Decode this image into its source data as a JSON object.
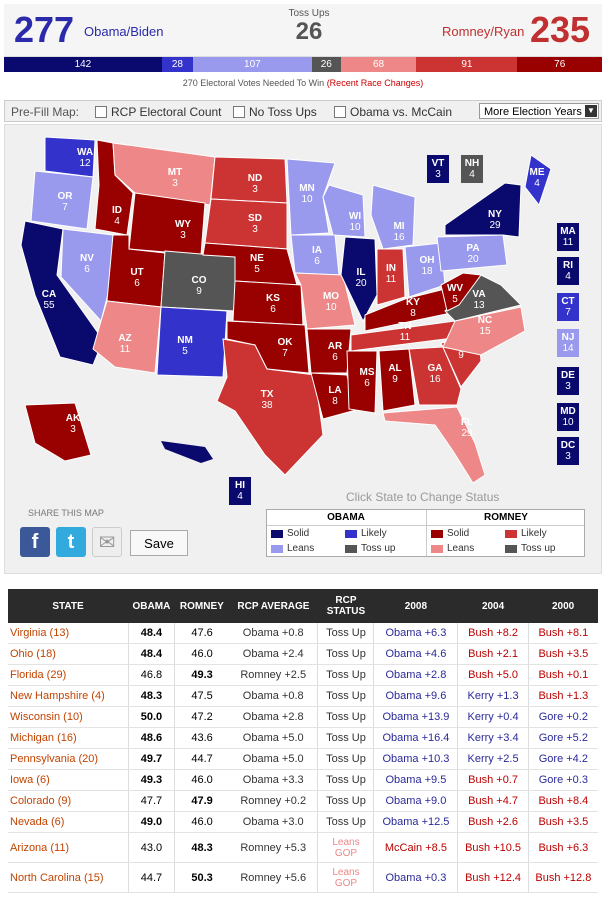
{
  "header": {
    "obama_votes": "277",
    "obama_label": "Obama/Biden",
    "toss_label": "Toss Ups",
    "toss_votes": "26",
    "romney_label": "Romney/Ryan",
    "romney_votes": "235"
  },
  "bar": [
    {
      "value": "142",
      "color": "#0a0a6e",
      "width": 142
    },
    {
      "value": "28",
      "color": "#3333cc",
      "width": 28
    },
    {
      "value": "107",
      "color": "#9999ee",
      "width": 107
    },
    {
      "value": "26",
      "color": "#555555",
      "width": 26
    },
    {
      "value": "68",
      "color": "#ee8888",
      "width": 68
    },
    {
      "value": "91",
      "color": "#cc3333",
      "width": 91
    },
    {
      "value": "76",
      "color": "#990000",
      "width": 76
    }
  ],
  "note": {
    "text": "270 Electoral Votes Needed To Win",
    "link": "(Recent Race Changes)"
  },
  "prefill": {
    "label": "Pre-Fill Map:",
    "options": [
      "RCP Electoral Count",
      "No Toss Ups",
      "Obama vs. McCain"
    ],
    "select": "More Election Years",
    "arrow": "▼"
  },
  "colors": {
    "solid_o": "#0a0a6e",
    "likely_o": "#3333cc",
    "leans_o": "#9999ee",
    "toss": "#555555",
    "leans_r": "#ee8888",
    "likely_r": "#cc3333",
    "solid_r": "#990000"
  },
  "states": [
    {
      "a": "WA",
      "v": "12",
      "c": "likely_o"
    },
    {
      "a": "OR",
      "v": "7",
      "c": "leans_o"
    },
    {
      "a": "CA",
      "v": "55",
      "c": "solid_o"
    },
    {
      "a": "ID",
      "v": "4",
      "c": "solid_r"
    },
    {
      "a": "NV",
      "v": "6",
      "c": "leans_o"
    },
    {
      "a": "MT",
      "v": "3",
      "c": "leans_r"
    },
    {
      "a": "WY",
      "v": "3",
      "c": "solid_r"
    },
    {
      "a": "UT",
      "v": "6",
      "c": "solid_r"
    },
    {
      "a": "AZ",
      "v": "11",
      "c": "leans_r"
    },
    {
      "a": "CO",
      "v": "9",
      "c": "toss"
    },
    {
      "a": "NM",
      "v": "5",
      "c": "likely_o"
    },
    {
      "a": "ND",
      "v": "3",
      "c": "likely_r"
    },
    {
      "a": "SD",
      "v": "3",
      "c": "likely_r"
    },
    {
      "a": "NE",
      "v": "5",
      "c": "solid_r"
    },
    {
      "a": "KS",
      "v": "6",
      "c": "solid_r"
    },
    {
      "a": "OK",
      "v": "7",
      "c": "solid_r"
    },
    {
      "a": "TX",
      "v": "38",
      "c": "likely_r"
    },
    {
      "a": "MN",
      "v": "10",
      "c": "leans_o"
    },
    {
      "a": "IA",
      "v": "6",
      "c": "leans_o"
    },
    {
      "a": "MO",
      "v": "10",
      "c": "leans_r"
    },
    {
      "a": "AR",
      "v": "6",
      "c": "solid_r"
    },
    {
      "a": "LA",
      "v": "8",
      "c": "solid_r"
    },
    {
      "a": "WI",
      "v": "10",
      "c": "leans_o"
    },
    {
      "a": "IL",
      "v": "20",
      "c": "solid_o"
    },
    {
      "a": "MI",
      "v": "16",
      "c": "leans_o"
    },
    {
      "a": "IN",
      "v": "11",
      "c": "likely_r"
    },
    {
      "a": "OH",
      "v": "18",
      "c": "leans_o"
    },
    {
      "a": "KY",
      "v": "8",
      "c": "solid_r"
    },
    {
      "a": "TN",
      "v": "11",
      "c": "likely_r"
    },
    {
      "a": "MS",
      "v": "6",
      "c": "solid_r"
    },
    {
      "a": "AL",
      "v": "9",
      "c": "solid_r"
    },
    {
      "a": "GA",
      "v": "16",
      "c": "likely_r"
    },
    {
      "a": "FL",
      "v": "29",
      "c": "leans_r"
    },
    {
      "a": "SC",
      "v": "9",
      "c": "likely_r"
    },
    {
      "a": "NC",
      "v": "15",
      "c": "leans_r"
    },
    {
      "a": "VA",
      "v": "13",
      "c": "toss"
    },
    {
      "a": "WV",
      "v": "5",
      "c": "solid_r"
    },
    {
      "a": "PA",
      "v": "20",
      "c": "leans_o"
    },
    {
      "a": "NY",
      "v": "29",
      "c": "solid_o"
    },
    {
      "a": "ME",
      "v": "4",
      "c": "likely_o"
    },
    {
      "a": "AK",
      "v": "3",
      "c": "solid_r"
    },
    {
      "a": "HI",
      "v": "4",
      "c": "solid_o"
    },
    {
      "a": "VT",
      "v": "3",
      "c": "solid_o"
    },
    {
      "a": "NH",
      "v": "4",
      "c": "toss"
    },
    {
      "a": "MA",
      "v": "11",
      "c": "solid_o"
    },
    {
      "a": "RI",
      "v": "4",
      "c": "solid_o"
    },
    {
      "a": "CT",
      "v": "7",
      "c": "likely_o"
    },
    {
      "a": "NJ",
      "v": "14",
      "c": "leans_o"
    },
    {
      "a": "DE",
      "v": "3",
      "c": "solid_o"
    },
    {
      "a": "MD",
      "v": "10",
      "c": "solid_o"
    },
    {
      "a": "DC",
      "v": "3",
      "c": "solid_o"
    }
  ],
  "share": {
    "label": "SHARE THIS MAP",
    "fb": "f",
    "tw": "t",
    "mail": "✉",
    "save": "Save",
    "click": "Click State to Change Status"
  },
  "legend": {
    "obama": "OBAMA",
    "romney": "ROMNEY",
    "solid": "Solid",
    "likely": "Likely",
    "leans": "Leans",
    "toss": "Toss up"
  },
  "table": {
    "headers": [
      "STATE",
      "OBAMA",
      "ROMNEY",
      "RCP AVERAGE",
      "RCP STATUS",
      "2008",
      "2004",
      "2000"
    ],
    "rows": [
      {
        "state": "Virginia (13)",
        "obama": "48.4",
        "romney": "47.6",
        "win": "o",
        "avg": "Obama +0.8",
        "avgc": "blue",
        "status": "Toss Up",
        "y08": "Obama +6.3",
        "c08": "blue",
        "y04": "Bush +8.2",
        "c04": "red",
        "y00": "Bush +8.1",
        "c00": "red"
      },
      {
        "state": "Ohio (18)",
        "obama": "48.4",
        "romney": "46.0",
        "win": "o",
        "avg": "Obama +2.4",
        "avgc": "blue",
        "status": "Toss Up",
        "y08": "Obama +4.6",
        "c08": "blue",
        "y04": "Bush +2.1",
        "c04": "red",
        "y00": "Bush +3.5",
        "c00": "red"
      },
      {
        "state": "Florida (29)",
        "obama": "46.8",
        "romney": "49.3",
        "win": "r",
        "avg": "Romney +2.5",
        "avgc": "red",
        "status": "Toss Up",
        "y08": "Obama +2.8",
        "c08": "blue",
        "y04": "Bush +5.0",
        "c04": "red",
        "y00": "Bush +0.1",
        "c00": "red"
      },
      {
        "state": "New Hampshire (4)",
        "obama": "48.3",
        "romney": "47.5",
        "win": "o",
        "avg": "Obama +0.8",
        "avgc": "blue",
        "status": "Toss Up",
        "y08": "Obama +9.6",
        "c08": "blue",
        "y04": "Kerry +1.3",
        "c04": "blue",
        "y00": "Bush +1.3",
        "c00": "red"
      },
      {
        "state": "Wisconsin (10)",
        "obama": "50.0",
        "romney": "47.2",
        "win": "o",
        "avg": "Obama +2.8",
        "avgc": "blue",
        "status": "Toss Up",
        "y08": "Obama +13.9",
        "c08": "blue",
        "y04": "Kerry +0.4",
        "c04": "blue",
        "y00": "Gore +0.2",
        "c00": "blue"
      },
      {
        "state": "Michigan (16)",
        "obama": "48.6",
        "romney": "43.6",
        "win": "o",
        "avg": "Obama +5.0",
        "avgc": "blue",
        "status": "Toss Up",
        "y08": "Obama +16.4",
        "c08": "blue",
        "y04": "Kerry +3.4",
        "c04": "blue",
        "y00": "Gore +5.2",
        "c00": "blue"
      },
      {
        "state": "Pennsylvania (20)",
        "obama": "49.7",
        "romney": "44.7",
        "win": "o",
        "avg": "Obama +5.0",
        "avgc": "blue",
        "status": "Toss Up",
        "y08": "Obama +10.3",
        "c08": "blue",
        "y04": "Kerry +2.5",
        "c04": "blue",
        "y00": "Gore +4.2",
        "c00": "blue"
      },
      {
        "state": "Iowa (6)",
        "obama": "49.3",
        "romney": "46.0",
        "win": "o",
        "avg": "Obama +3.3",
        "avgc": "blue",
        "status": "Toss Up",
        "y08": "Obama +9.5",
        "c08": "blue",
        "y04": "Bush +0.7",
        "c04": "red",
        "y00": "Gore +0.3",
        "c00": "blue"
      },
      {
        "state": "Colorado (9)",
        "obama": "47.7",
        "romney": "47.9",
        "win": "r",
        "avg": "Romney +0.2",
        "avgc": "red",
        "status": "Toss Up",
        "y08": "Obama +9.0",
        "c08": "blue",
        "y04": "Bush +4.7",
        "c04": "red",
        "y00": "Bush +8.4",
        "c00": "red"
      },
      {
        "state": "Nevada (6)",
        "obama": "49.0",
        "romney": "46.0",
        "win": "o",
        "avg": "Obama +3.0",
        "avgc": "blue",
        "status": "Toss Up",
        "y08": "Obama +12.5",
        "c08": "blue",
        "y04": "Bush +2.6",
        "c04": "red",
        "y00": "Bush +3.5",
        "c00": "red"
      },
      {
        "state": "Arizona (11)",
        "obama": "43.0",
        "romney": "48.3",
        "win": "r",
        "avg": "Romney +5.3",
        "avgc": "red",
        "status": "Leans GOP",
        "gop": true,
        "y08": "McCain +8.5",
        "c08": "red",
        "y04": "Bush +10.5",
        "c04": "red",
        "y00": "Bush +6.3",
        "c00": "red"
      },
      {
        "state": "North Carolina (15)",
        "obama": "44.7",
        "romney": "50.3",
        "win": "r",
        "avg": "Romney +5.6",
        "avgc": "red",
        "status": "Leans GOP",
        "gop": true,
        "y08": "Obama +0.3",
        "c08": "blue",
        "y04": "Bush +12.4",
        "c04": "red",
        "y00": "Bush +12.8",
        "c00": "red"
      }
    ]
  }
}
